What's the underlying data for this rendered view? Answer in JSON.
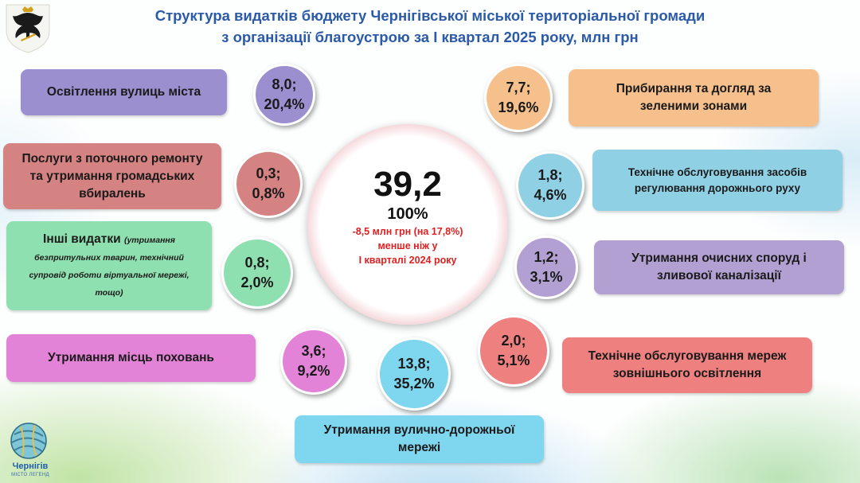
{
  "title": {
    "line1": "Структура видатків бюджету Чернігівської міської територіальної громади",
    "line2": "з організації благоустрою за І квартал 2025 року, млн грн"
  },
  "center": {
    "total": "39,2",
    "percent": "100%",
    "change_line1": "-8,5 млн грн (на 17,8%)",
    "change_line2": "менше ніж у",
    "change_line3": "І кварталі 2024 року"
  },
  "items": {
    "street_lighting": {
      "label": "Освітлення вулиць міста",
      "value": "8,0;",
      "share": "20,4%",
      "color": "#9b8fd0"
    },
    "toilets": {
      "label": "Послуги з поточного ремонту та утримання громадських вбиралень",
      "value": "0,3;",
      "share": "0,8%",
      "color": "#d58282"
    },
    "other": {
      "label": "Інші видатки",
      "label_detail": "(утримання безпритульних тварин, технічний супровід роботи віртуальної мережі, тощо)",
      "value": "0,8;",
      "share": "2,0%",
      "color": "#8fe0b0"
    },
    "cemeteries": {
      "label": "Утримання місць поховань",
      "value": "3,6;",
      "share": "9,2%",
      "color": "#e383d8"
    },
    "roads": {
      "label": "Утримання вулично-дорожньої мережі",
      "value": "13,8;",
      "share": "35,2%",
      "color": "#7fd6ef"
    },
    "green_zones": {
      "label": "Прибирання та догляд за зеленими зонами",
      "value": "7,7;",
      "share": "19,6%",
      "color": "#f6c08c"
    },
    "traffic": {
      "label": "Технічне обслуговування засобів регулювання дорожнього руху",
      "value": "1,8;",
      "share": "4,6%",
      "color": "#8fd0e4"
    },
    "sewage": {
      "label": "Утримання очисних споруд і зливової каналізації",
      "value": "1,2;",
      "share": "3,1%",
      "color": "#b3a0d2"
    },
    "outdoor_lighting": {
      "label": "Технічне обслуговування мереж зовнішнього освітлення",
      "value": "2,0;",
      "share": "5,1%",
      "color": "#ee8080"
    }
  },
  "logo": {
    "name": "Чернігів",
    "tagline": "МІСТО ЛЕГЕНД"
  }
}
